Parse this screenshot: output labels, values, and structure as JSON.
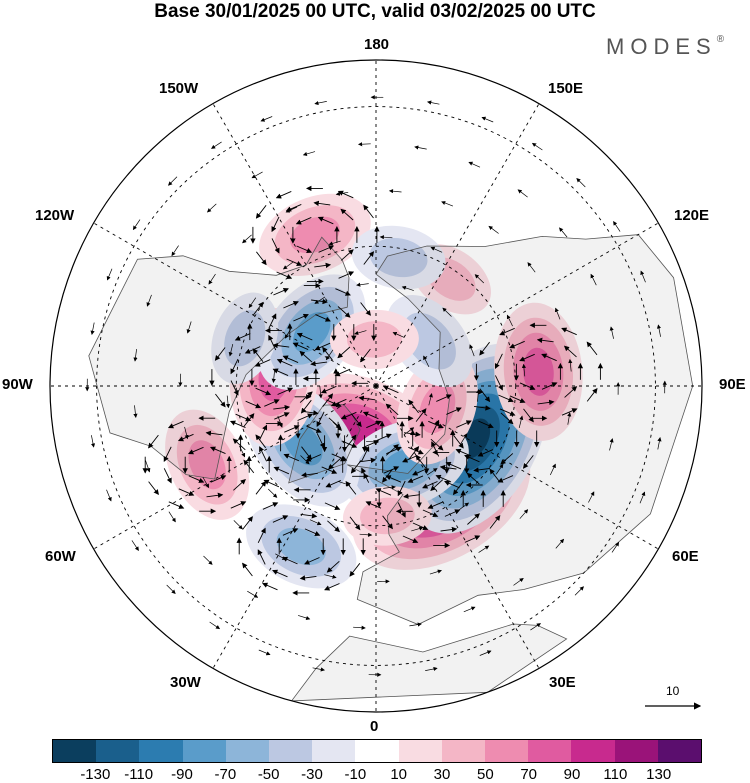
{
  "title": "Base 30/01/2025 00 UTC, valid 03/02/2025 00 UTC",
  "brand": "MODES",
  "brand_mark": "®",
  "longitude_labels": {
    "top": "180",
    "bottom": "0",
    "left": "90W",
    "right": "90E",
    "upper_left_outer": "150W",
    "upper_left_inner": "120W",
    "lower_left_outer": "60W",
    "lower_left_inner": "30W",
    "upper_right_outer": "150E",
    "upper_right_inner": "120E",
    "lower_right_outer": "60E",
    "lower_right_inner": "30E"
  },
  "vector_scale_label": "10",
  "colorbar": {
    "colors": [
      "#0b3e5e",
      "#1a5f8c",
      "#2c7cb0",
      "#5a9cca",
      "#8db5d9",
      "#bcc8e2",
      "#e4e6f2",
      "#ffffff",
      "#f9dce2",
      "#f4b6c6",
      "#ee8cb0",
      "#e05ba0",
      "#c82a8e",
      "#9a1379",
      "#5b0e6e"
    ],
    "tick_labels": [
      "-130",
      "-110",
      "-90",
      "-70",
      "-50",
      "-30",
      "-10",
      "10",
      "30",
      "50",
      "70",
      "90",
      "110",
      "130"
    ]
  },
  "anomaly_cells": [
    {
      "lat": 62,
      "lon": 30,
      "value": 125
    },
    {
      "lat": 66,
      "lon": 62,
      "value": -135
    },
    {
      "lat": 55,
      "lon": 95,
      "value": 75
    },
    {
      "lat": 80,
      "lon": -20,
      "value": 100
    },
    {
      "lat": 72,
      "lon": 20,
      "value": -70
    },
    {
      "lat": 76,
      "lon": 70,
      "value": 55
    },
    {
      "lat": 70,
      "lon": -52,
      "value": -80
    },
    {
      "lat": 68,
      "lon": -95,
      "value": 75
    },
    {
      "lat": 72,
      "lon": -130,
      "value": -70
    },
    {
      "lat": 50,
      "lon": -65,
      "value": 55
    },
    {
      "lat": 52,
      "lon": -25,
      "value": -55
    },
    {
      "lat": 55,
      "lon": -158,
      "value": 55
    },
    {
      "lat": 62,
      "lon": 145,
      "value": 30
    },
    {
      "lat": 62,
      "lon": 170,
      "value": -35
    },
    {
      "lat": 75,
      "lon": 130,
      "value": -45
    },
    {
      "lat": 80,
      "lon": -178,
      "value": 30
    },
    {
      "lat": 60,
      "lon": -110,
      "value": -35
    },
    {
      "lat": 62,
      "lon": 5,
      "value": 30
    }
  ],
  "vector_rings": [
    {
      "lat": 62,
      "lon": 30,
      "dir": -1
    },
    {
      "lat": 66,
      "lon": 62,
      "dir": 1
    },
    {
      "lat": 55,
      "lon": 95,
      "dir": -1
    },
    {
      "lat": 80,
      "lon": -20,
      "dir": -1
    },
    {
      "lat": 72,
      "lon": 20,
      "dir": 1
    },
    {
      "lat": 70,
      "lon": -52,
      "dir": 1
    },
    {
      "lat": 68,
      "lon": -95,
      "dir": -1
    },
    {
      "lat": 72,
      "lon": -130,
      "dir": 1
    },
    {
      "lat": 50,
      "lon": -65,
      "dir": -1
    },
    {
      "lat": 52,
      "lon": -25,
      "dir": 1
    },
    {
      "lat": 55,
      "lon": -158,
      "dir": -1
    }
  ]
}
